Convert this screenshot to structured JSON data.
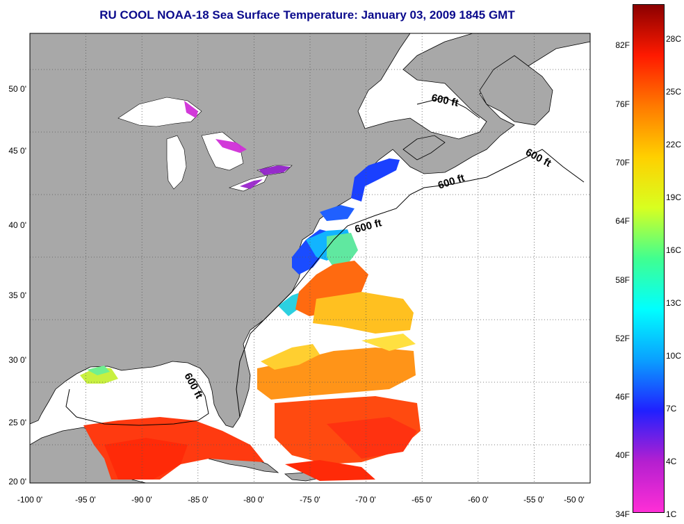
{
  "title": "RU COOL  NOAA-18  Sea Surface Temperature:  January 03, 2009 1845 GMT",
  "map": {
    "lon_range": [
      -100,
      -50
    ],
    "lat_range": [
      20,
      52.5
    ],
    "lat_ticks": [
      "50 0'",
      "45 0'",
      "40 0'",
      "35 0'",
      "30 0'",
      "25 0'",
      "20 0'"
    ],
    "lon_ticks": [
      "-100 0'",
      "-95 0'",
      "-90 0'",
      "-85 0'",
      "-80 0'",
      "-75 0'",
      "-70 0'",
      "-65 0'",
      "-60 0'",
      "-55 0'",
      "-50 0'"
    ],
    "grid": "dotted",
    "land_color": "#a8a8a8",
    "cloud_color": "#ffffff",
    "isobath_labels": [
      "600 ft",
      "600 ft",
      "600 ft",
      "600 ft",
      "600 ft"
    ]
  },
  "colorbar": {
    "fahrenheit_labels": [
      "82F",
      "76F",
      "70F",
      "64F",
      "58F",
      "52F",
      "46F",
      "40F",
      "34F"
    ],
    "celsius_labels": [
      "28C",
      "25C",
      "22C",
      "19C",
      "16C",
      "13C",
      "10C",
      "7C",
      "4C",
      "1C"
    ],
    "colors_bottom_to_top": [
      "#ff2ed6",
      "#b41fd0",
      "#2020ff",
      "#0aa0ff",
      "#00ffff",
      "#40ff90",
      "#d8ff20",
      "#ffd000",
      "#ff7a00",
      "#ff1a00",
      "#8b0000"
    ]
  }
}
